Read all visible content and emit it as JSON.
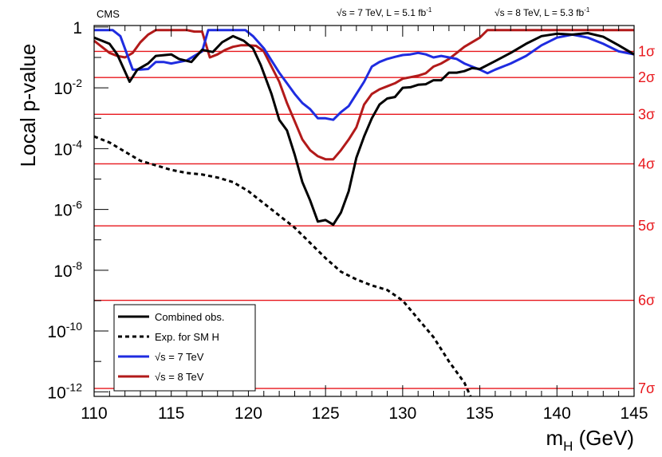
{
  "chart_data": {
    "type": "line",
    "title": "CMS",
    "energy_labels": {
      "left": "√s = 7 TeV, L = 5.1 fb",
      "right": "√s = 8 TeV, L = 5.3 fb",
      "sup": "-1"
    },
    "xlabel": "m",
    "xlabel_sub": "H",
    "xlabel_unit": " (GeV)",
    "ylabel": "Local p-value",
    "xlim": [
      110,
      145
    ],
    "ylim_log10": [
      -12.15,
      0.05
    ],
    "x_ticks": [
      110,
      115,
      120,
      125,
      130,
      135,
      140,
      145
    ],
    "y_ticks": [
      {
        "exp": 0,
        "base": "1",
        "sup": ""
      },
      {
        "exp": -2,
        "base": "10",
        "sup": "-2"
      },
      {
        "exp": -4,
        "base": "10",
        "sup": "-4"
      },
      {
        "exp": -6,
        "base": "10",
        "sup": "-6"
      },
      {
        "exp": -8,
        "base": "10",
        "sup": "-8"
      },
      {
        "exp": -10,
        "base": "10",
        "sup": "-10"
      },
      {
        "exp": -12,
        "base": "10",
        "sup": "-12"
      }
    ],
    "sigma_lines": [
      {
        "label": "1σ",
        "log10p": -0.8
      },
      {
        "label": "2σ",
        "log10p": -1.66
      },
      {
        "label": "3σ",
        "log10p": -2.87
      },
      {
        "label": "4σ",
        "log10p": -4.5
      },
      {
        "label": "5σ",
        "log10p": -6.54
      },
      {
        "label": "6σ",
        "log10p": -8.99
      },
      {
        "label": "7σ",
        "log10p": -11.89
      }
    ],
    "legend_position": "bottom-left",
    "series": [
      {
        "name": "Combined  obs.",
        "color": "#000000",
        "style": "solid",
        "points": [
          [
            110,
            -0.35
          ],
          [
            111,
            -0.55
          ],
          [
            111.5,
            -0.9
          ],
          [
            112.3,
            -1.8
          ],
          [
            112.8,
            -1.4
          ],
          [
            113.5,
            -1.2
          ],
          [
            114,
            -0.95
          ],
          [
            115,
            -0.9
          ],
          [
            115.5,
            -1.05
          ],
          [
            116.3,
            -1.15
          ],
          [
            117,
            -0.75
          ],
          [
            117.7,
            -0.82
          ],
          [
            118.3,
            -0.5
          ],
          [
            119,
            -0.3
          ],
          [
            119.7,
            -0.45
          ],
          [
            120.3,
            -0.7
          ],
          [
            120.8,
            -1.25
          ],
          [
            121.5,
            -2.2
          ],
          [
            122,
            -3.05
          ],
          [
            122.5,
            -3.4
          ],
          [
            123,
            -4.2
          ],
          [
            123.5,
            -5.1
          ],
          [
            124,
            -5.7
          ],
          [
            124.5,
            -6.4
          ],
          [
            125,
            -6.35
          ],
          [
            125.5,
            -6.5
          ],
          [
            126,
            -6.1
          ],
          [
            126.5,
            -5.4
          ],
          [
            127,
            -4.3
          ],
          [
            127.5,
            -3.6
          ],
          [
            128,
            -3.0
          ],
          [
            128.5,
            -2.55
          ],
          [
            129,
            -2.35
          ],
          [
            129.5,
            -2.3
          ],
          [
            130,
            -2.0
          ],
          [
            130.5,
            -1.98
          ],
          [
            131,
            -1.9
          ],
          [
            131.5,
            -1.88
          ],
          [
            132,
            -1.75
          ],
          [
            132.5,
            -1.75
          ],
          [
            133,
            -1.5
          ],
          [
            133.5,
            -1.5
          ],
          [
            134,
            -1.45
          ],
          [
            134.5,
            -1.35
          ],
          [
            135,
            -1.38
          ],
          [
            136,
            -1.12
          ],
          [
            137,
            -0.85
          ],
          [
            138,
            -0.55
          ],
          [
            139,
            -0.3
          ],
          [
            140,
            -0.22
          ],
          [
            141,
            -0.25
          ],
          [
            142,
            -0.2
          ],
          [
            143,
            -0.32
          ],
          [
            144,
            -0.6
          ],
          [
            145,
            -0.9
          ]
        ]
      },
      {
        "name": "Exp. for SM H",
        "color": "#000000",
        "style": "dashed",
        "points": [
          [
            110,
            -3.6
          ],
          [
            111,
            -3.8
          ],
          [
            112,
            -4.1
          ],
          [
            113,
            -4.4
          ],
          [
            114,
            -4.55
          ],
          [
            115,
            -4.7
          ],
          [
            116,
            -4.8
          ],
          [
            117,
            -4.85
          ],
          [
            118,
            -4.95
          ],
          [
            119,
            -5.1
          ],
          [
            120,
            -5.4
          ],
          [
            121,
            -5.8
          ],
          [
            122,
            -6.2
          ],
          [
            123,
            -6.6
          ],
          [
            124,
            -7.1
          ],
          [
            125,
            -7.6
          ],
          [
            126,
            -8.05
          ],
          [
            127,
            -8.3
          ],
          [
            128,
            -8.5
          ],
          [
            129,
            -8.65
          ],
          [
            130,
            -9.0
          ],
          [
            131,
            -9.6
          ],
          [
            132,
            -10.2
          ],
          [
            133,
            -11.0
          ],
          [
            134,
            -11.7
          ],
          [
            134.4,
            -12.15
          ]
        ]
      },
      {
        "name": "√s = 7 TeV",
        "color": "#1f2ce0",
        "style": "solid",
        "points": [
          [
            110,
            -0.1
          ],
          [
            111.2,
            -0.1
          ],
          [
            111.7,
            -0.3
          ],
          [
            112.5,
            -1.4
          ],
          [
            113,
            -1.4
          ],
          [
            113.5,
            -1.38
          ],
          [
            114,
            -1.15
          ],
          [
            114.5,
            -1.15
          ],
          [
            115,
            -1.2
          ],
          [
            116,
            -1.1
          ],
          [
            116.5,
            -0.95
          ],
          [
            117,
            -0.8
          ],
          [
            117.4,
            -0.1
          ],
          [
            119.8,
            -0.1
          ],
          [
            120.3,
            -0.3
          ],
          [
            121,
            -0.7
          ],
          [
            121.5,
            -1.1
          ],
          [
            122,
            -1.5
          ],
          [
            122.5,
            -1.85
          ],
          [
            123,
            -2.2
          ],
          [
            123.5,
            -2.5
          ],
          [
            124,
            -2.7
          ],
          [
            124.5,
            -3.0
          ],
          [
            125,
            -3.0
          ],
          [
            125.5,
            -3.05
          ],
          [
            126,
            -2.8
          ],
          [
            126.5,
            -2.6
          ],
          [
            127,
            -2.2
          ],
          [
            127.5,
            -1.8
          ],
          [
            128,
            -1.3
          ],
          [
            128.5,
            -1.15
          ],
          [
            129,
            -1.05
          ],
          [
            129.5,
            -0.98
          ],
          [
            130,
            -0.92
          ],
          [
            130.5,
            -0.9
          ],
          [
            131,
            -0.85
          ],
          [
            131.5,
            -0.9
          ],
          [
            132,
            -1.0
          ],
          [
            132.5,
            -0.95
          ],
          [
            133,
            -1.0
          ],
          [
            133.5,
            -1.05
          ],
          [
            134,
            -1.2
          ],
          [
            134.5,
            -1.3
          ],
          [
            135,
            -1.4
          ],
          [
            135.5,
            -1.52
          ],
          [
            136,
            -1.4
          ],
          [
            137,
            -1.2
          ],
          [
            138,
            -0.95
          ],
          [
            139,
            -0.6
          ],
          [
            140,
            -0.35
          ],
          [
            141,
            -0.25
          ],
          [
            142,
            -0.35
          ],
          [
            143,
            -0.55
          ],
          [
            144,
            -0.8
          ],
          [
            145,
            -0.9
          ]
        ]
      },
      {
        "name": "√s = 8 TeV",
        "color": "#b21a1a",
        "style": "solid",
        "points": [
          [
            110,
            -0.45
          ],
          [
            111,
            -0.85
          ],
          [
            111.5,
            -0.95
          ],
          [
            112,
            -1.0
          ],
          [
            112.5,
            -0.85
          ],
          [
            113,
            -0.5
          ],
          [
            113.5,
            -0.25
          ],
          [
            114,
            -0.1
          ],
          [
            116,
            -0.1
          ],
          [
            116.5,
            -0.15
          ],
          [
            117,
            -0.15
          ],
          [
            117.5,
            -1.0
          ],
          [
            118,
            -0.9
          ],
          [
            118.5,
            -0.75
          ],
          [
            119,
            -0.65
          ],
          [
            119.5,
            -0.6
          ],
          [
            120,
            -0.6
          ],
          [
            120.5,
            -0.62
          ],
          [
            121,
            -0.8
          ],
          [
            121.5,
            -1.3
          ],
          [
            122,
            -1.8
          ],
          [
            122.5,
            -2.5
          ],
          [
            123,
            -3.1
          ],
          [
            123.5,
            -3.7
          ],
          [
            124,
            -4.05
          ],
          [
            124.5,
            -4.25
          ],
          [
            125,
            -4.35
          ],
          [
            125.5,
            -4.35
          ],
          [
            126,
            -4.05
          ],
          [
            126.5,
            -3.7
          ],
          [
            127,
            -3.3
          ],
          [
            127.5,
            -2.55
          ],
          [
            128,
            -2.2
          ],
          [
            128.5,
            -2.05
          ],
          [
            129,
            -1.95
          ],
          [
            129.5,
            -1.85
          ],
          [
            130,
            -1.7
          ],
          [
            130.5,
            -1.65
          ],
          [
            131,
            -1.6
          ],
          [
            131.5,
            -1.52
          ],
          [
            132,
            -1.3
          ],
          [
            132.5,
            -1.2
          ],
          [
            133,
            -1.05
          ],
          [
            133.5,
            -0.85
          ],
          [
            134,
            -0.65
          ],
          [
            135,
            -0.35
          ],
          [
            135.5,
            -0.1
          ],
          [
            145,
            -0.1
          ]
        ]
      }
    ]
  }
}
